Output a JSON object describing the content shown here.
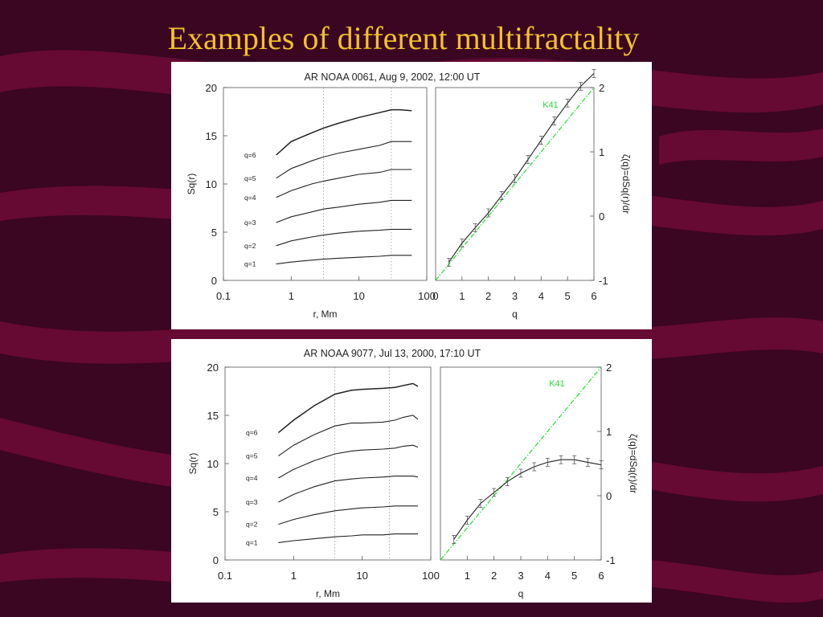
{
  "slide": {
    "title": "Examples of different multifractality"
  },
  "colors": {
    "background": "#3a0622",
    "band": "#6e0a36",
    "title": "#f2c228",
    "k41": "#22dd33",
    "curve": "#222222"
  },
  "chart_data": [
    {
      "type": "line",
      "title": "AR NOAA 0061, Aug 9, 2002, 12:00 UT",
      "panels": [
        {
          "name": "structure-functions",
          "xlabel": "r, Mm",
          "ylabel": "Sq(r)",
          "xscale": "log",
          "xlim": [
            0.1,
            100
          ],
          "ylim": [
            0,
            20
          ],
          "xticks": [
            "0.1",
            "1",
            "10",
            "100"
          ],
          "yticks": [
            "0",
            "5",
            "10",
            "15",
            "20"
          ],
          "vlines": [
            3,
            30
          ],
          "x": [
            0.6,
            1,
            2,
            3,
            5,
            10,
            20,
            30,
            40,
            60
          ],
          "series": [
            {
              "name": "q=6",
              "values": [
                13.0,
                14.4,
                15.3,
                15.8,
                16.3,
                16.9,
                17.4,
                17.7,
                17.7,
                17.6
              ]
            },
            {
              "name": "q=5",
              "values": [
                10.6,
                11.6,
                12.4,
                12.8,
                13.2,
                13.6,
                14.0,
                14.4,
                14.4,
                14.4
              ]
            },
            {
              "name": "q=4",
              "values": [
                8.6,
                9.3,
                10.0,
                10.3,
                10.6,
                11.0,
                11.2,
                11.5,
                11.5,
                11.5
              ]
            },
            {
              "name": "q=3",
              "values": [
                6.0,
                6.6,
                7.1,
                7.4,
                7.6,
                7.9,
                8.1,
                8.3,
                8.3,
                8.3
              ]
            },
            {
              "name": "q=2",
              "values": [
                3.6,
                4.1,
                4.5,
                4.7,
                4.9,
                5.1,
                5.2,
                5.3,
                5.3,
                5.3
              ]
            },
            {
              "name": "q=1",
              "values": [
                1.7,
                1.9,
                2.1,
                2.2,
                2.3,
                2.4,
                2.5,
                2.6,
                2.6,
                2.6
              ]
            }
          ]
        },
        {
          "name": "scaling-exponents",
          "xlabel": "q",
          "ylabel": "ζ(q)=dSq(r)/dr",
          "xlim": [
            0,
            6
          ],
          "ylim": [
            -1,
            2
          ],
          "xticks": [
            "0",
            "1",
            "2",
            "3",
            "4",
            "5",
            "6"
          ],
          "yticks": [
            "-1",
            "0",
            "1",
            "2"
          ],
          "k41": {
            "name": "K41",
            "x": [
              0,
              6
            ],
            "y": [
              -1,
              2
            ]
          },
          "series": [
            {
              "name": "",
              "x": [
                0.5,
                1,
                1.5,
                2,
                2.5,
                3,
                3.5,
                4,
                4.5,
                5,
                5.5,
                6
              ],
              "values": [
                -0.72,
                -0.42,
                -0.18,
                0.05,
                0.32,
                0.58,
                0.88,
                1.18,
                1.48,
                1.76,
                2.02,
                2.22
              ]
            }
          ]
        }
      ]
    },
    {
      "type": "line",
      "title": "AR NOAA 9077, Jul 13, 2000, 17:10 UT",
      "panels": [
        {
          "name": "structure-functions",
          "xlabel": "r, Mm",
          "ylabel": "Sq(r)",
          "xscale": "log",
          "xlim": [
            0.1,
            100
          ],
          "ylim": [
            0,
            20
          ],
          "xticks": [
            "0.1",
            "1",
            "10",
            "100"
          ],
          "yticks": [
            "0",
            "5",
            "10",
            "15",
            "20"
          ],
          "vlines": [
            4,
            25
          ],
          "x": [
            0.6,
            1,
            2,
            4,
            7,
            10,
            20,
            30,
            40,
            55,
            65
          ],
          "series": [
            {
              "name": "q=6",
              "values": [
                13.2,
                14.5,
                16.0,
                17.2,
                17.6,
                17.7,
                17.8,
                17.9,
                18.1,
                18.3,
                18.0
              ]
            },
            {
              "name": "q=5",
              "values": [
                10.8,
                11.9,
                13.0,
                13.9,
                14.2,
                14.2,
                14.3,
                14.5,
                14.8,
                15.0,
                14.6
              ]
            },
            {
              "name": "q=4",
              "values": [
                8.5,
                9.4,
                10.3,
                11.0,
                11.3,
                11.4,
                11.5,
                11.6,
                11.8,
                11.9,
                11.7
              ]
            },
            {
              "name": "q=3",
              "values": [
                6.0,
                6.8,
                7.6,
                8.2,
                8.4,
                8.5,
                8.6,
                8.7,
                8.7,
                8.7,
                8.6
              ]
            },
            {
              "name": "q=2",
              "values": [
                3.7,
                4.2,
                4.7,
                5.1,
                5.3,
                5.4,
                5.5,
                5.6,
                5.6,
                5.6,
                5.6
              ]
            },
            {
              "name": "q=1",
              "values": [
                1.8,
                2.0,
                2.2,
                2.4,
                2.5,
                2.6,
                2.6,
                2.7,
                2.7,
                2.7,
                2.7
              ]
            }
          ]
        },
        {
          "name": "scaling-exponents",
          "xlabel": "q",
          "ylabel": "ζ(q)=dSq(r)/dr",
          "xlim": [
            0,
            6
          ],
          "ylim": [
            -1,
            2
          ],
          "xticks": [
            "1",
            "2",
            "3",
            "4",
            "5",
            "6"
          ],
          "yticks": [
            "-1",
            "0",
            "1",
            "2"
          ],
          "k41": {
            "name": "K41",
            "x": [
              0,
              6
            ],
            "y": [
              -1,
              2
            ]
          },
          "series": [
            {
              "name": "",
              "x": [
                0.5,
                1,
                1.5,
                2,
                2.5,
                3,
                3.5,
                4,
                4.5,
                5,
                5.5,
                6
              ],
              "values": [
                -0.68,
                -0.38,
                -0.12,
                0.05,
                0.22,
                0.35,
                0.45,
                0.52,
                0.56,
                0.56,
                0.52,
                0.48
              ]
            }
          ]
        }
      ]
    }
  ]
}
